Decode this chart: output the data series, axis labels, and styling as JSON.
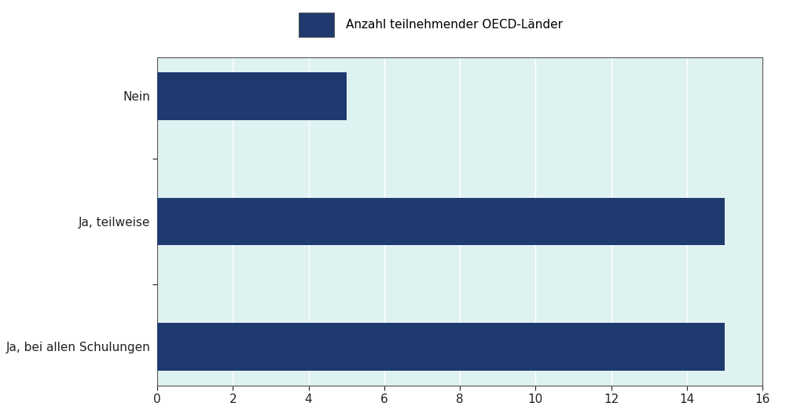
{
  "categories": [
    "Ja, bei allen Schulungen",
    "Ja, teilweise",
    "Nein"
  ],
  "values": [
    15,
    15,
    5
  ],
  "bar_color": "#1f3a6e",
  "plot_bg_color": "#dff2f2",
  "fig_bg_color": "#ffffff",
  "legend_bg_color": "#c8c8c8",
  "legend_label": "Anzahl teilnehmender OECD-Länder",
  "xlim": [
    0,
    16
  ],
  "xticks": [
    0,
    2,
    4,
    6,
    8,
    10,
    12,
    14,
    16
  ],
  "bar_height": 0.38,
  "grid_color": "#ffffff",
  "tick_label_fontsize": 11,
  "legend_fontsize": 11,
  "axis_label_color": "#222222",
  "spine_color": "#555555"
}
